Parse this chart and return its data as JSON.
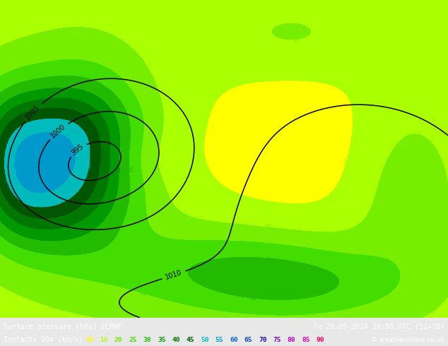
{
  "title_line1": "Surface pressure [hPa] ECMWF",
  "title_line2": "Isotachs 10m (km/h)",
  "date_str": "Tu 28-05-2024 18:00 UTC (12+7B)",
  "copyright": "© weatheronline.co.uk",
  "legend_values": [
    10,
    15,
    20,
    25,
    30,
    35,
    40,
    45,
    50,
    55,
    60,
    65,
    70,
    75,
    80,
    85,
    90
  ],
  "legend_colors": [
    "#ffff00",
    "#aaff00",
    "#77ee00",
    "#44dd00",
    "#22bb00",
    "#009900",
    "#007700",
    "#005500",
    "#00bbbb",
    "#0099cc",
    "#0066cc",
    "#0044bb",
    "#2200cc",
    "#7700cc",
    "#bb00bb",
    "#ee00aa",
    "#ff0055"
  ],
  "bar_bg": "#111122",
  "fig_width": 6.34,
  "fig_height": 4.9,
  "map_bg": "#e8e8e8",
  "sea_color": "#dcdcdc",
  "land_color": "#c8e8a0"
}
